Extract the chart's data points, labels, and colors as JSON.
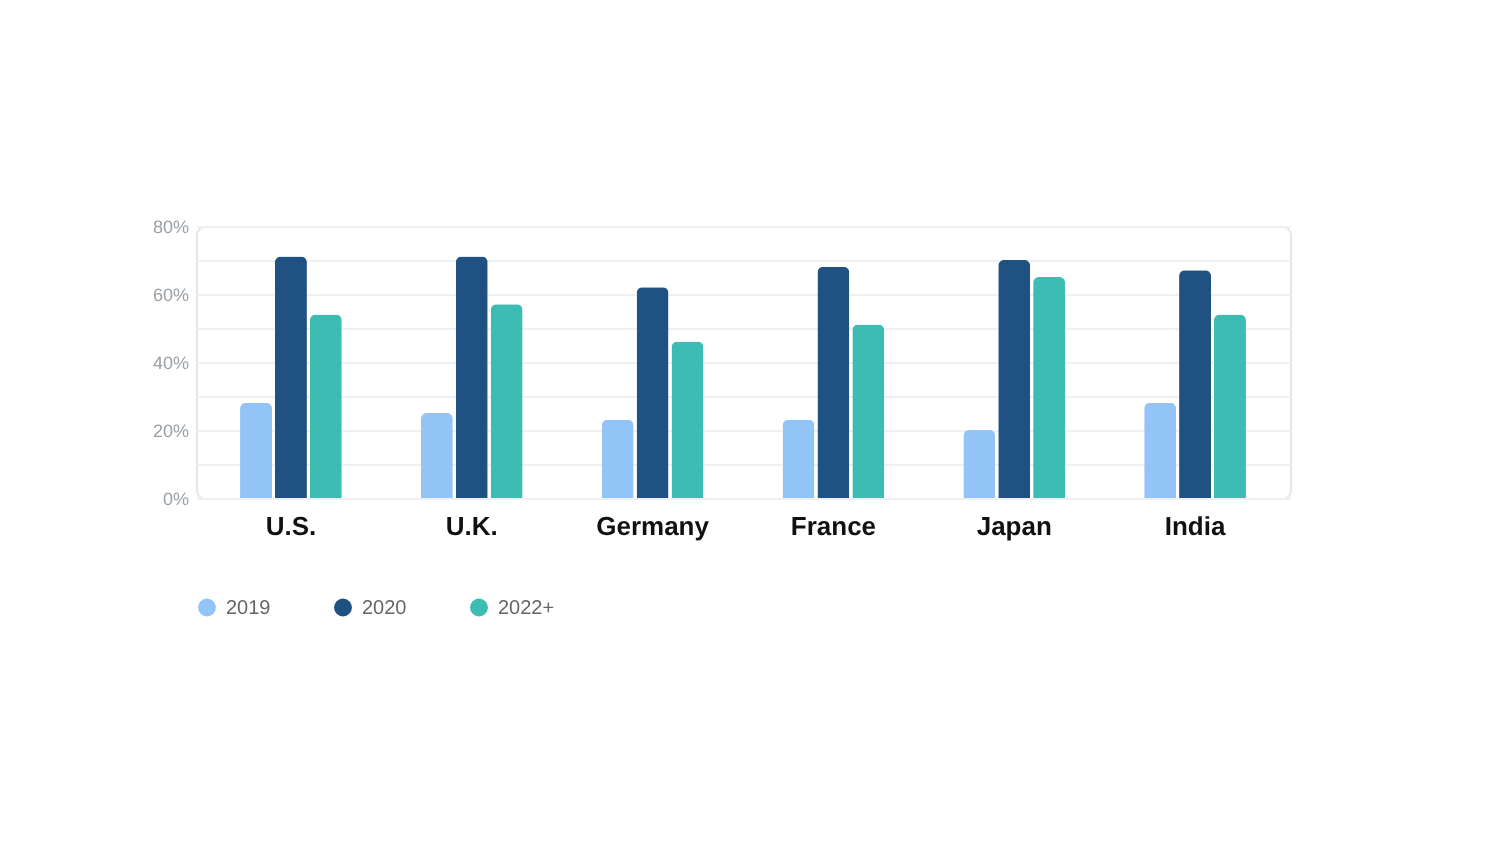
{
  "chart_data": {
    "type": "bar",
    "categories": [
      "U.S.",
      "U.K.",
      "Germany",
      "France",
      "Japan",
      "India"
    ],
    "series": [
      {
        "name": "2019",
        "color": "#93c4f8",
        "values": [
          28,
          25,
          23,
          23,
          20,
          28
        ]
      },
      {
        "name": "2020",
        "color": "#1f5183",
        "values": [
          71,
          71,
          62,
          68,
          70,
          67
        ]
      },
      {
        "name": "2022+",
        "color": "#3dbcb3",
        "values": [
          54,
          57,
          46,
          51,
          65,
          54
        ]
      }
    ],
    "ylim": [
      0,
      80
    ],
    "yticks": [
      {
        "value": 0,
        "label": "0%"
      },
      {
        "value": 10,
        "label": null
      },
      {
        "value": 20,
        "label": "20%"
      },
      {
        "value": 30,
        "label": null
      },
      {
        "value": 40,
        "label": "40%"
      },
      {
        "value": 50,
        "label": null
      },
      {
        "value": 60,
        "label": "60%"
      },
      {
        "value": 70,
        "label": null
      },
      {
        "value": 80,
        "label": "80%"
      }
    ],
    "grid": "y",
    "legend": "bottom"
  }
}
